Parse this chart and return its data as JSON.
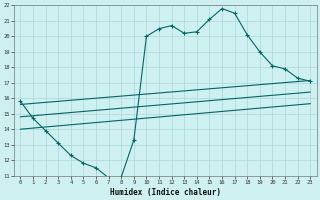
{
  "xlabel": "Humidex (Indice chaleur)",
  "bg_color": "#cff0f0",
  "grid_color": "#aad8d8",
  "line_color": "#006666",
  "xlim": [
    -0.5,
    23.5
  ],
  "ylim": [
    11,
    22
  ],
  "xticks": [
    0,
    1,
    2,
    3,
    4,
    5,
    6,
    7,
    8,
    9,
    10,
    11,
    12,
    13,
    14,
    15,
    16,
    17,
    18,
    19,
    20,
    21,
    22,
    23
  ],
  "yticks": [
    11,
    12,
    13,
    14,
    15,
    16,
    17,
    18,
    19,
    20,
    21,
    22
  ],
  "main_x": [
    0,
    1,
    2,
    3,
    4,
    5,
    6,
    7,
    8,
    9,
    10,
    11,
    12,
    13,
    14,
    15,
    16,
    17,
    18,
    19,
    20,
    21,
    22,
    23
  ],
  "main_y": [
    15.8,
    14.7,
    13.9,
    13.1,
    12.3,
    11.8,
    11.5,
    10.85,
    10.9,
    13.3,
    20.0,
    20.5,
    20.7,
    20.2,
    20.3,
    21.1,
    21.8,
    21.5,
    20.1,
    19.0,
    18.1,
    17.9,
    17.3,
    17.1
  ],
  "line1_x": [
    0,
    23
  ],
  "line1_y": [
    15.6,
    17.15
  ],
  "line2_x": [
    0,
    23
  ],
  "line2_y": [
    14.8,
    16.4
  ],
  "line3_x": [
    0,
    23
  ],
  "line3_y": [
    14.0,
    15.65
  ]
}
